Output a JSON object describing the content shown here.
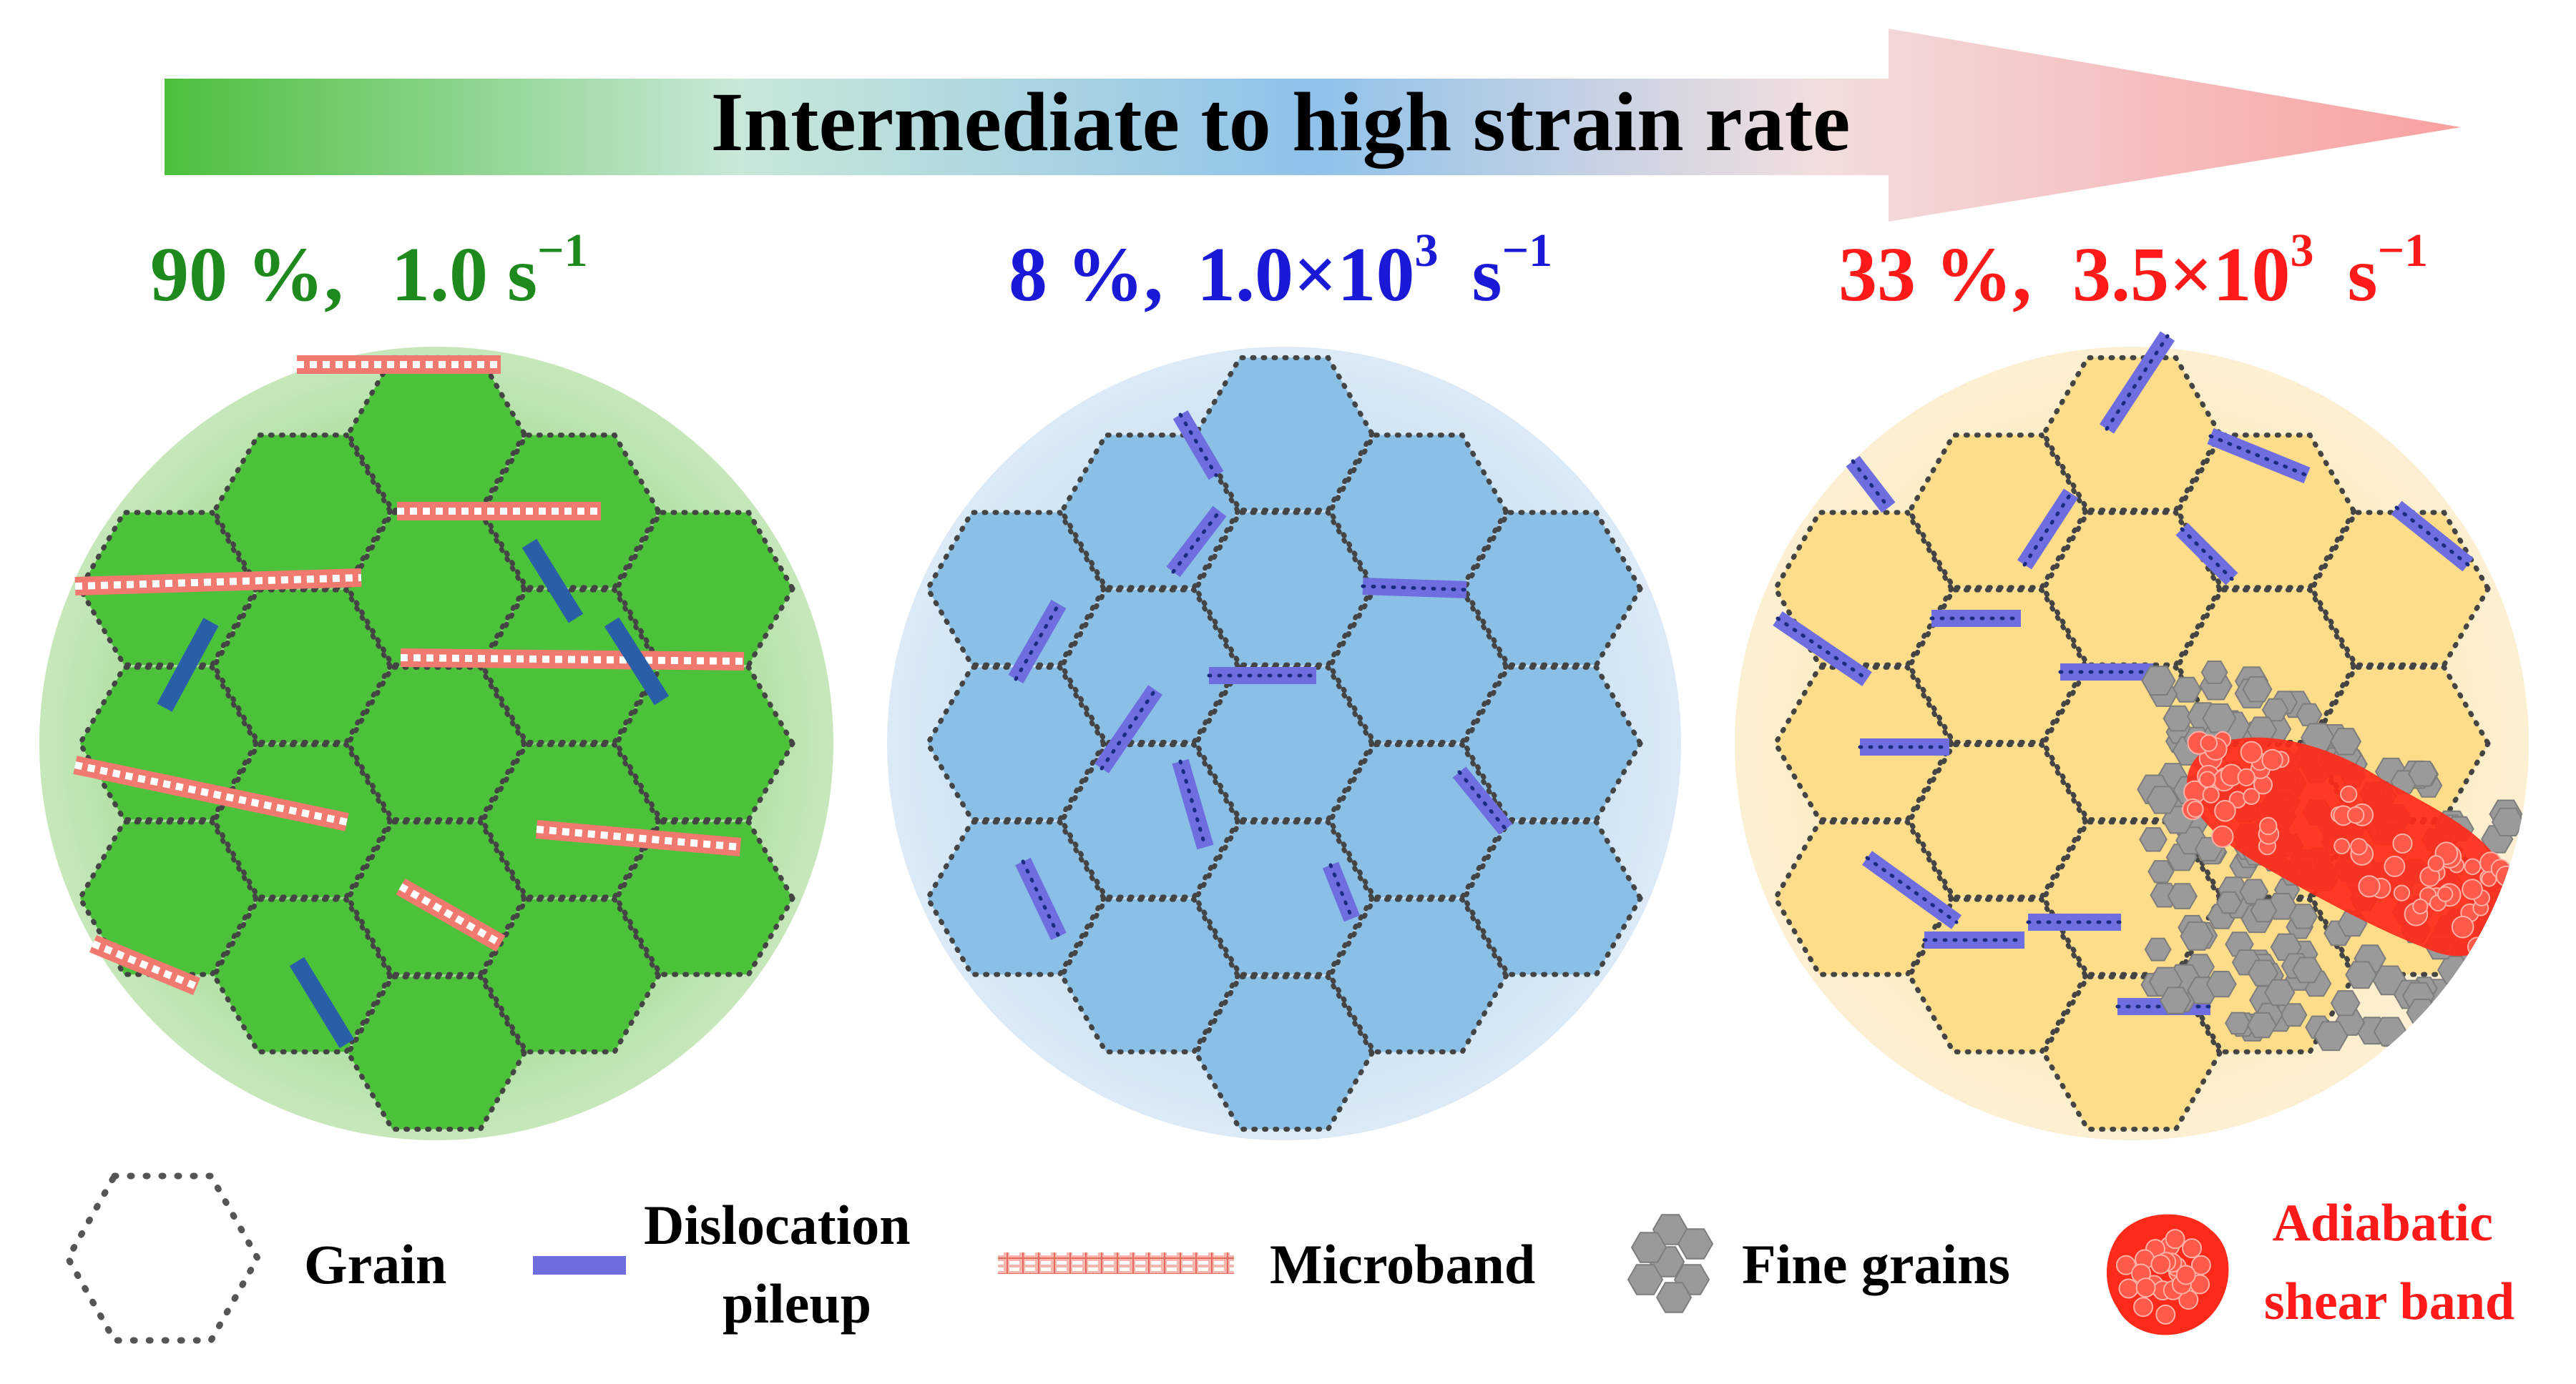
{
  "arrow": {
    "label": "Intermediate to high strain rate"
  },
  "panels": [
    {
      "percent": "90 %,",
      "rate_base": "1.0 s",
      "rate_exp": "−1",
      "color": "#1e8a1e"
    },
    {
      "percent": "8 %,",
      "rate_base": "1.0×10",
      "rate_mid_exp": "3",
      "rate_unit": " s",
      "rate_exp": "−1",
      "color": "#1a1ad6"
    },
    {
      "percent": "33 %,",
      "rate_base": "3.5×10",
      "rate_mid_exp": "3",
      "rate_unit": " s",
      "rate_exp": "−1",
      "color": "#ff1a1a"
    }
  ],
  "legend": {
    "grain": "Grain",
    "dislocation_line1": "Dislocation",
    "dislocation_line2": "pileup",
    "microband": "Microband",
    "fine_grains": "Fine grains",
    "asb_line1": "Adiabatic",
    "asb_line2": "shear band"
  },
  "colors": {
    "green_fill": "#4cc23a",
    "green_bg": "#c9e9bd",
    "blue_fill": "#8bc0e6",
    "blue_bg": "#d3e6f5",
    "yellow_fill": "#fddc8a",
    "yellow_bg": "#fcebc4",
    "dislocation": "#6f6ee0",
    "dislocation_dark": "#2a5fa8",
    "microband": "#f07a70",
    "fine_grain": "#9a9a9a",
    "asb": "#ff2a1a",
    "grain_outline": "#444444"
  }
}
